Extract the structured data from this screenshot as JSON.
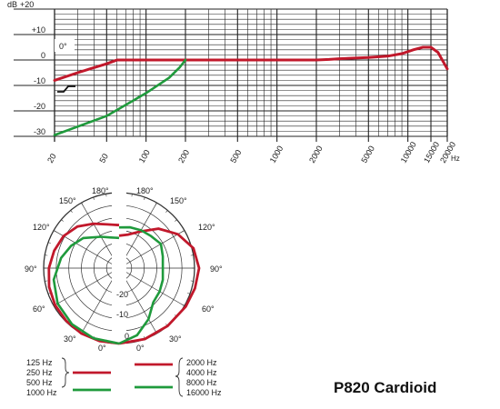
{
  "colors": {
    "red": "#c1182b",
    "green": "#1f9a3c",
    "grid": "#222222"
  },
  "frequency_response": {
    "db_unit": "dB",
    "db_labels": [
      "+20",
      "+10",
      "0",
      "-10",
      "-20",
      "-30"
    ],
    "freq_labels": [
      "20",
      "50",
      "100",
      "200",
      "500",
      "1000",
      "2000",
      "5000",
      "10000",
      "15000",
      "20000"
    ],
    "hz_unit": "Hz",
    "angle_label": "0°",
    "curves": {
      "main": [
        [
          20,
          -8
        ],
        [
          30,
          -5
        ],
        [
          40,
          -3
        ],
        [
          50,
          -1.5
        ],
        [
          60,
          0
        ],
        [
          100,
          0
        ],
        [
          1000,
          0
        ],
        [
          2000,
          0
        ],
        [
          2500,
          0.2
        ],
        [
          3000,
          0.5
        ],
        [
          5000,
          1
        ],
        [
          7000,
          1.5
        ],
        [
          9000,
          2.5
        ],
        [
          11000,
          4
        ],
        [
          13000,
          5
        ],
        [
          15000,
          5
        ],
        [
          17000,
          3
        ],
        [
          20000,
          -3.5
        ]
      ],
      "lowcut": [
        [
          20,
          -29.5
        ],
        [
          50,
          -22
        ],
        [
          100,
          -13
        ],
        [
          150,
          -7
        ],
        [
          180,
          -3
        ],
        [
          200,
          0
        ]
      ]
    }
  },
  "polar": {
    "top_left": "180°",
    "top_right": "180°",
    "left_150": "150°",
    "right_150": "150°",
    "left_120": "120°",
    "right_120": "120°",
    "left_90": "90°",
    "right_90": "90°",
    "left_60": "60°",
    "right_60": "60°",
    "left_30": "30°",
    "right_30": "30°",
    "left_0": "0°",
    "right_0": "0°",
    "scale": [
      "-20",
      "-10",
      "0"
    ]
  },
  "legend": {
    "left": [
      "125 Hz",
      "250 Hz",
      "500 Hz",
      "1000 Hz"
    ],
    "right": [
      "2000 Hz",
      "4000 Hz",
      "8000 Hz",
      "16000 Hz"
    ]
  },
  "model_title": "P820 Cardioid"
}
